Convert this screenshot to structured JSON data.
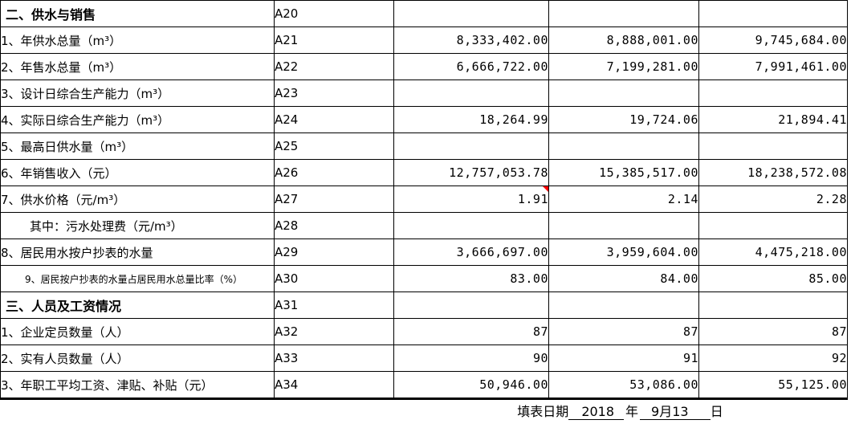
{
  "colors": {
    "cell_cyan": "#CCFFFF",
    "cell_yellow": "#FFFF99",
    "comment_red": "#FF0000",
    "grid_line": "#000000"
  },
  "table": {
    "rows": [
      {
        "code": "A20",
        "label": "二、供水与销售",
        "kind": "section",
        "fill": "none",
        "values": [
          "",
          "",
          ""
        ]
      },
      {
        "code": "A21",
        "label": "1、年供水总量（m³）",
        "kind": "item",
        "fill": "cyan",
        "values": [
          "8,333,402.00",
          "8,888,001.00",
          "9,745,684.00"
        ]
      },
      {
        "code": "A22",
        "label": "2、年售水总量（m³）",
        "kind": "item",
        "fill": "cyan",
        "values": [
          "6,666,722.00",
          "7,199,281.00",
          "7,991,461.00"
        ]
      },
      {
        "code": "A23",
        "label": "3、设计日综合生产能力（m³）",
        "kind": "item",
        "fill": "cyan",
        "values": [
          "",
          "",
          ""
        ]
      },
      {
        "code": "A24",
        "label": "4、实际日综合生产能力（m³）",
        "kind": "item",
        "fill": "cyan",
        "values": [
          "18,264.99",
          "19,724.06",
          "21,894.41"
        ]
      },
      {
        "code": "A25",
        "label": "5、最高日供水量（m³）",
        "kind": "item",
        "fill": "none",
        "values": [
          "",
          "",
          ""
        ]
      },
      {
        "code": "A26",
        "label": "6、年销售收入（元）",
        "kind": "item",
        "fill": "cyan",
        "values": [
          "12,757,053.78",
          "15,385,517.00",
          "18,238,572.08"
        ]
      },
      {
        "code": "A27",
        "label": "7、供水价格（元/m³）",
        "kind": "item",
        "fill": "yellow",
        "values": [
          "1.91",
          "2.14",
          "2.28"
        ],
        "comment_cell": 0
      },
      {
        "code": "A28",
        "label": "其中：污水处理费（元/m³）",
        "kind": "subnote",
        "fill": "none",
        "values": [
          "",
          "",
          ""
        ]
      },
      {
        "code": "A29",
        "label": "8、居民用水按户抄表的水量",
        "kind": "item",
        "fill": "cyan",
        "values": [
          "3,666,697.00",
          "3,959,604.00",
          "4,475,218.00"
        ]
      },
      {
        "code": "A30",
        "label": "9、居民按户抄表的水量占居民用水总量比率（%）",
        "kind": "small",
        "fill": "cyan",
        "values": [
          "83.00",
          "84.00",
          "85.00"
        ]
      },
      {
        "code": "A31",
        "label": "三、人员及工资情况",
        "kind": "section",
        "fill": "none",
        "values": [
          "",
          "",
          ""
        ]
      },
      {
        "code": "A32",
        "label": "1、企业定员数量（人）",
        "kind": "item",
        "fill": "cyan",
        "values": [
          "87",
          "87",
          "87"
        ]
      },
      {
        "code": "A33",
        "label": "2、实有人员数量（人）",
        "kind": "item",
        "fill": "cyan",
        "values": [
          "90",
          "91",
          "92"
        ]
      },
      {
        "code": "A34",
        "label": "3、年职工平均工资、津贴、补贴（元）",
        "kind": "item",
        "fill": "none",
        "values": [
          "50,946.00",
          "53,086.00",
          "55,125.00"
        ]
      }
    ]
  },
  "footer": {
    "prefix": "填表日期",
    "year": "2018",
    "year_unit": "年",
    "date": "9月13",
    "day_unit": "日"
  }
}
